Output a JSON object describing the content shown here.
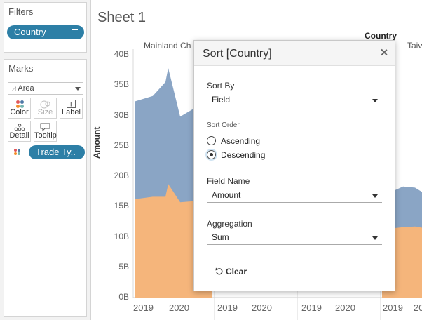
{
  "filters": {
    "title": "Filters",
    "pill": "Country"
  },
  "marks": {
    "title": "Marks",
    "mark_type": "Area",
    "buttons": [
      {
        "label": "Color"
      },
      {
        "label": "Size"
      },
      {
        "label": "Label"
      },
      {
        "label": "Detail"
      },
      {
        "label": "Tooltip"
      }
    ],
    "pill": "Trade Ty..",
    "colors": {
      "blue": "#4e79a7",
      "orange": "#f28e2b",
      "red": "#e15759",
      "teal": "#76b7b2"
    }
  },
  "sheet": {
    "title": "Sheet 1",
    "column_header_title": "Country",
    "columns": [
      "Mainland Ch",
      "Taiv"
    ],
    "y_axis_label": "Amount",
    "y_ticks": [
      "40B",
      "35B",
      "30B",
      "25B",
      "20B",
      "15B",
      "10B",
      "5B",
      "0B"
    ],
    "x_ticks": [
      "2019",
      "2020",
      "2019",
      "2020",
      "2019",
      "2020",
      "2019",
      "2020"
    ]
  },
  "chart_data": {
    "type": "area",
    "ylabel": "Amount",
    "ylim": [
      0,
      40
    ],
    "unit": "B",
    "series": [
      {
        "name": "Trade Type (blue)",
        "color": "#8aa5c5",
        "panel": "Mainland Ch",
        "top_values": [
          32.3,
          33.2,
          35.5,
          37.8,
          29.8,
          31.3,
          27.5
        ]
      },
      {
        "name": "Trade Type (orange)",
        "color": "#f5b57b",
        "panel": "Mainland Ch",
        "top_values": [
          16.2,
          16.6,
          16.6,
          18.7,
          15.7,
          15.9,
          16.4
        ]
      },
      {
        "name": "Trade Type (blue)",
        "color": "#8aa5c5",
        "panel": "Taiv",
        "top_values": [
          16.5,
          17.5,
          18.3,
          18.1,
          17.4
        ]
      },
      {
        "name": "Trade Type (orange)",
        "color": "#f5b57b",
        "panel": "Taiv",
        "top_values": [
          10.8,
          11.4,
          11.6,
          11.7,
          11.5
        ]
      }
    ]
  },
  "dialog": {
    "title": "Sort [Country]",
    "sort_by_label": "Sort By",
    "sort_by_value": "Field",
    "sort_order_label": "Sort Order",
    "ascending": "Ascending",
    "descending": "Descending",
    "selected_order": "Descending",
    "field_name_label": "Field Name",
    "field_name_value": "Amount",
    "aggregation_label": "Aggregation",
    "aggregation_value": "Sum",
    "clear_label": "Clear"
  }
}
